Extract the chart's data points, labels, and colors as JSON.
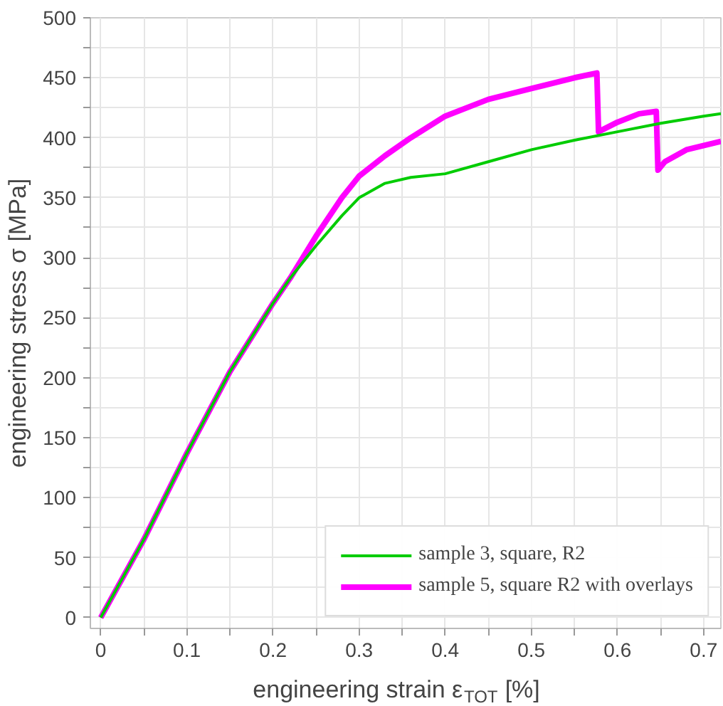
{
  "chart_data": {
    "type": "line",
    "xlabel": "engineering strain ε$_{TOT}$ [%]",
    "ylabel": "engineering stress σ [MPa]",
    "xlim": [
      -0.012,
      0.72
    ],
    "ylim": [
      -9,
      500
    ],
    "xticks": [
      0,
      {
        "value": 0.05,
        "label": null
      },
      0.1,
      {
        "value": 0.15,
        "label": null
      },
      0.2,
      {
        "value": 0.25,
        "label": null
      },
      0.3,
      {
        "value": 0.35,
        "label": null
      },
      0.4,
      {
        "value": 0.45,
        "label": null
      },
      0.5,
      {
        "value": 0.55,
        "label": null
      },
      0.6,
      {
        "value": 0.65,
        "label": null
      },
      0.7
    ],
    "yticks": [
      0,
      {
        "value": 25,
        "label": null
      },
      50,
      {
        "value": 75,
        "label": null
      },
      100,
      {
        "value": 125,
        "label": null
      },
      150,
      {
        "value": 175,
        "label": null
      },
      200,
      {
        "value": 225,
        "label": null
      },
      250,
      {
        "value": 275,
        "label": null
      },
      300,
      {
        "value": 325,
        "label": null
      },
      350,
      {
        "value": 375,
        "label": null
      },
      400,
      {
        "value": 425,
        "label": null
      },
      450,
      {
        "value": 475,
        "label": null
      },
      500
    ],
    "grid": true,
    "legend": "bottom right",
    "series": [
      {
        "name": "sample 3, square, R2",
        "color": "#00cc00",
        "x": [
          0,
          0.05,
          0.1,
          0.15,
          0.2,
          0.22,
          0.25,
          0.28,
          0.3,
          0.33,
          0.36,
          0.4,
          0.45,
          0.5,
          0.55,
          0.6,
          0.65,
          0.7,
          0.72
        ],
        "values": [
          0,
          65,
          137,
          205,
          262,
          283,
          310,
          335,
          350,
          362,
          367,
          370,
          380,
          390,
          398,
          405,
          412,
          418,
          420
        ]
      },
      {
        "name": "sample 5, square R2 with overlays",
        "color": "#ff00ff",
        "x": [
          0,
          0.05,
          0.1,
          0.15,
          0.2,
          0.22,
          0.25,
          0.28,
          0.3,
          0.33,
          0.36,
          0.4,
          0.45,
          0.5,
          0.55,
          0.576,
          0.578,
          0.6,
          0.625,
          0.645,
          0.647,
          0.655,
          0.68,
          0.72
        ],
        "values": [
          0,
          65,
          137,
          205,
          262,
          283,
          318,
          350,
          368,
          385,
          400,
          418,
          432,
          441,
          450,
          454,
          405,
          413,
          420,
          422,
          373,
          380,
          390,
          397
        ]
      }
    ]
  }
}
